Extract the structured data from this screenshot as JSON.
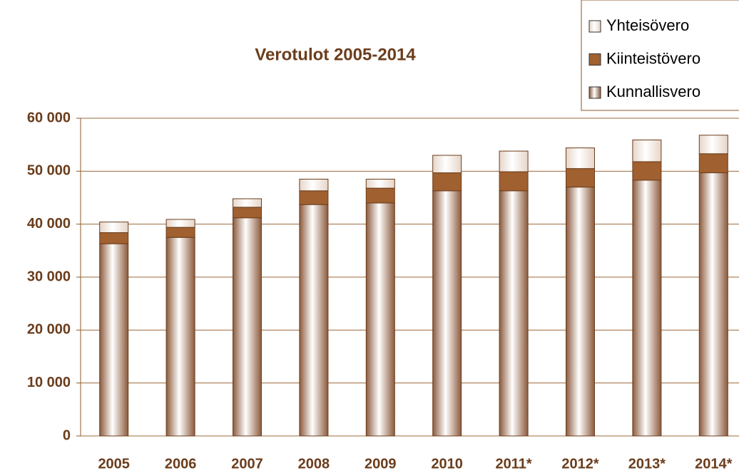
{
  "chart_data": {
    "type": "stacked-bar",
    "title": "Verotulot 2005-2014",
    "categories": [
      "2005",
      "2006",
      "2007",
      "2008",
      "2009",
      "2010",
      "2011*",
      "2012*",
      "2013*",
      "2014*"
    ],
    "series": [
      {
        "name": "Kunnallisvero",
        "color": "#8b5a3c",
        "values": [
          36300,
          37500,
          41200,
          43700,
          44000,
          46300,
          46300,
          47000,
          48300,
          49700
        ]
      },
      {
        "name": "Kiinteistövero",
        "color": "#a0602f",
        "values": [
          2100,
          1900,
          2000,
          2600,
          2800,
          3400,
          3600,
          3500,
          3500,
          3600
        ]
      },
      {
        "name": "Yhteisövero",
        "color": "#e6d5c8",
        "values": [
          2000,
          1500,
          1600,
          2200,
          1700,
          3300,
          3900,
          3900,
          4100,
          3500
        ]
      }
    ],
    "ylim": [
      0,
      60000
    ],
    "yticks": [
      0,
      {
        "value": 10000,
        "label": "10 000"
      },
      {
        "value": 20000,
        "label": "20 000"
      },
      {
        "value": 30000,
        "label": "30 000"
      },
      {
        "value": 40000,
        "label": "40 000"
      },
      {
        "value": 50000,
        "label": "50 000"
      },
      {
        "value": 60000,
        "label": "60 000"
      }
    ],
    "grid": true,
    "legend": "top-right"
  }
}
